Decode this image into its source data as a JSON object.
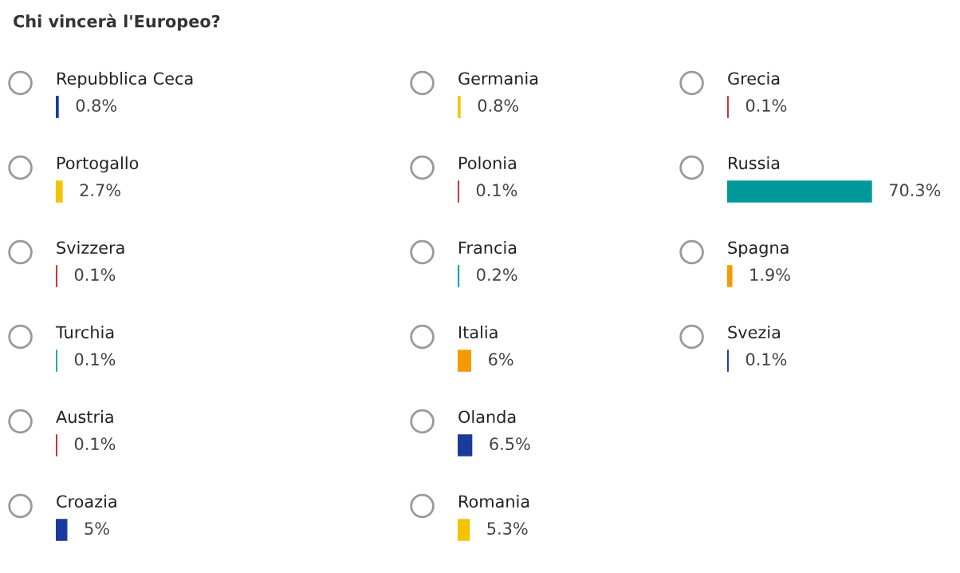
{
  "chart_data": [
    {
      "type": "bar",
      "orientation": "horizontal",
      "title": "Chi vincerà l'Europeo?",
      "categories": [
        "Repubblica Ceca",
        "Portogallo",
        "Svizzera",
        "Turchia",
        "Austria",
        "Croazia"
      ],
      "values": [
        0.8,
        2.7,
        0.1,
        0.1,
        0.1,
        5
      ],
      "colors": [
        "#1a3a9c",
        "#f5c400",
        "#d42a2a",
        "#1aa3a3",
        "#d42a2a",
        "#1a3a9c"
      ],
      "value_labels": [
        "0.8%",
        "2.7%",
        "0.1%",
        "0.1%",
        "0.1%",
        "5%"
      ],
      "tick_labels": false,
      "legend": false
    },
    {
      "type": "bar",
      "orientation": "horizontal",
      "categories": [
        "Germania",
        "Polonia",
        "Francia",
        "Italia",
        "Olanda",
        "Romania"
      ],
      "values": [
        0.8,
        0.1,
        0.2,
        6,
        6.5,
        5.3
      ],
      "colors": [
        "#f5c400",
        "#d42a2a",
        "#1aa3a3",
        "#f59a00",
        "#1a3a9c",
        "#f5c400"
      ],
      "value_labels": [
        "0.8%",
        "0.1%",
        "0.2%",
        "6%",
        "6.5%",
        "5.3%"
      ],
      "tick_labels": false,
      "legend": false
    },
    {
      "type": "bar",
      "orientation": "horizontal",
      "categories": [
        "Grecia",
        "Russia",
        "Spagna",
        "Svezia"
      ],
      "values": [
        0.1,
        70.3,
        1.9,
        0.1
      ],
      "colors": [
        "#d42a2a",
        "#009999",
        "#f59a00",
        "#1a3a9c"
      ],
      "value_labels": [
        "0.1%",
        "70.3%",
        "1.9%",
        "0.1%"
      ],
      "tick_labels": false,
      "legend": false
    }
  ]
}
